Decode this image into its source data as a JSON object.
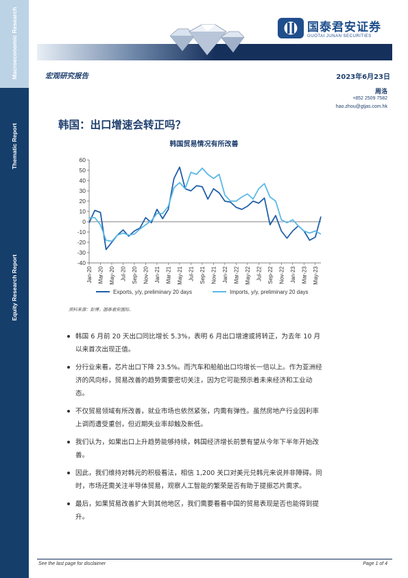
{
  "sidebar": {
    "section1": "Macroeconomic Research",
    "section2": "Thematic Report",
    "section3": "Equity Research Report"
  },
  "header": {
    "logo_name": "国泰君安证券",
    "logo_sub": "GUOTAI JUNAN SECURITIES",
    "report_type": "宏观研究报告",
    "date": "2023年6月23日",
    "author": "周洛",
    "phone": "+852 2509 7582",
    "email": "hao.zhou@gtjas.com.hk"
  },
  "title": "韩国：出口增速会转正吗？",
  "chart_title": "韩国贸易情况有所改善",
  "chart_data": {
    "type": "line",
    "title": "韩国贸易情况有所改善",
    "ylim": [
      -40,
      60
    ],
    "yticks": [
      60,
      50,
      40,
      30,
      20,
      10,
      0,
      -10,
      -20,
      -30,
      -40
    ],
    "xtick_labels": [
      "Jan-20",
      "Mar-20",
      "May-20",
      "Jul-20",
      "Sep-20",
      "Nov-20",
      "Jan-21",
      "Mar-21",
      "May-21",
      "Jul-21",
      "Sep-21",
      "Nov-21",
      "Jan-22",
      "Mar-22",
      "May-22",
      "Jul-22",
      "Sep-22",
      "Nov-22",
      "Jan-23",
      "Mar-23",
      "May-23"
    ],
    "x": [
      "Jan-20",
      "Feb-20",
      "Mar-20",
      "Apr-20",
      "May-20",
      "Jun-20",
      "Jul-20",
      "Aug-20",
      "Sep-20",
      "Oct-20",
      "Nov-20",
      "Dec-20",
      "Jan-21",
      "Feb-21",
      "Mar-21",
      "Apr-21",
      "May-21",
      "Jun-21",
      "Jul-21",
      "Aug-21",
      "Sep-21",
      "Oct-21",
      "Nov-21",
      "Dec-21",
      "Jan-22",
      "Feb-22",
      "Mar-22",
      "Apr-22",
      "May-22",
      "Jun-22",
      "Jul-22",
      "Aug-22",
      "Sep-22",
      "Oct-22",
      "Nov-22",
      "Dec-22",
      "Jan-23",
      "Feb-23",
      "Mar-23",
      "Apr-23",
      "May-23",
      "Jun-23"
    ],
    "series": [
      {
        "name": "Exports, y/y, preliminary 20 days",
        "color": "#1f5fa8",
        "values": [
          -1,
          11,
          9,
          -27,
          -20,
          -13,
          -8,
          -14,
          -9,
          -6,
          4,
          -1,
          12,
          3,
          12,
          42,
          53,
          32,
          30,
          35,
          34,
          22,
          32,
          28,
          20,
          19,
          14,
          12,
          15,
          20,
          18,
          23,
          -3,
          6,
          -9,
          -16,
          -9,
          -4,
          -9,
          -18,
          -15,
          5
        ]
      },
      {
        "name": "Imports, y/y, preliminary 20 days",
        "color": "#5bb8e6",
        "values": [
          4,
          4,
          -3,
          -18,
          -19,
          -13,
          -11,
          -13,
          -12,
          -7,
          -3,
          1,
          8,
          8,
          15,
          33,
          38,
          32,
          48,
          46,
          52,
          46,
          42,
          46,
          26,
          20,
          20,
          24,
          27,
          22,
          32,
          37,
          24,
          20,
          2,
          -1,
          2,
          -4,
          -9,
          -11,
          -9,
          -12
        ]
      }
    ]
  },
  "source": "资料来源：彭博，国泰君安国际。",
  "bullets": [
    "韩国 6 月前 20 天出口同比增长 5.3%，表明 6 月出口增速或将转正，为去年 10 月以来首次出现正值。",
    "分行业来看，芯片出口下降 23.5%。而汽车和船舶出口均增长一倍以上。作为亚洲经济的风向标，贸易改善的趋势需要密切关注，因为它可能预示着未来经济和工业动态。",
    "不仅贸易领域有所改善，就业市场也依然紧张，内需有弹性。虽然房地产行业因利率上调而遭受重创，但近期失业率却触及新低。",
    "我们认为，如果出口上升趋势能够持续，韩国经济增长前景有望从今年下半年开始改善。",
    "因此，我们维持对韩元的积极看法，相信 1,200 关口对美元兑韩元来说并非障碍。同时，市场还需关注半导体贸易，观察人工智能的繁荣是否有助于提振芯片需求。",
    "最后，如果贸易改善扩大到其他地区，我们需要看看中国的贸易表现是否也能得到提升。"
  ],
  "footer": {
    "disclaimer": "See the last page for disclaimer",
    "page": "Page 1 of 4"
  }
}
